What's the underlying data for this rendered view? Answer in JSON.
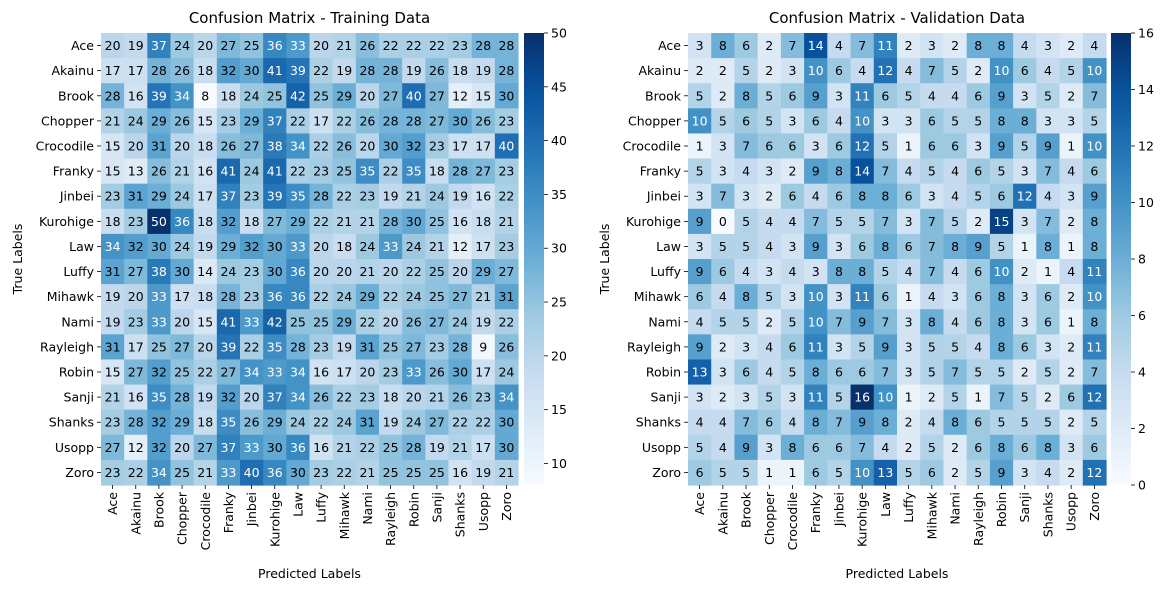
{
  "chart_data": [
    {
      "type": "heatmap",
      "title": "Confusion Matrix - Training Data",
      "xlabel": "Predicted Labels",
      "ylabel": "True Labels",
      "labels": [
        "Ace",
        "Akainu",
        "Brook",
        "Chopper",
        "Crocodile",
        "Franky",
        "Jinbei",
        "Kurohige",
        "Law",
        "Luffy",
        "Mihawk",
        "Nami",
        "Rayleigh",
        "Robin",
        "Sanji",
        "Shanks",
        "Usopp",
        "Zoro"
      ],
      "colorbar": {
        "min": 8,
        "max": 50,
        "ticks": [
          10,
          15,
          20,
          25,
          30,
          35,
          40,
          45,
          50
        ]
      },
      "colormap": [
        "#f7fbff",
        "#deebf7",
        "#c6dbef",
        "#9ecae1",
        "#6baed6",
        "#4292c6",
        "#2171b5",
        "#08519c",
        "#08306b"
      ],
      "matrix": [
        [
          20,
          19,
          37,
          24,
          20,
          27,
          25,
          36,
          33,
          20,
          21,
          26,
          22,
          22,
          22,
          23,
          28,
          28
        ],
        [
          17,
          17,
          28,
          26,
          18,
          32,
          30,
          41,
          39,
          22,
          19,
          28,
          28,
          19,
          26,
          18,
          19,
          28
        ],
        [
          28,
          16,
          39,
          34,
          8,
          18,
          24,
          25,
          42,
          25,
          29,
          20,
          27,
          40,
          27,
          12,
          15,
          30
        ],
        [
          21,
          24,
          29,
          26,
          15,
          23,
          29,
          37,
          22,
          17,
          22,
          26,
          28,
          28,
          27,
          30,
          26,
          23
        ],
        [
          15,
          20,
          31,
          20,
          18,
          26,
          27,
          38,
          34,
          22,
          26,
          20,
          30,
          32,
          23,
          17,
          17,
          40
        ],
        [
          15,
          13,
          26,
          21,
          16,
          41,
          24,
          41,
          22,
          23,
          25,
          35,
          22,
          35,
          18,
          28,
          27,
          23
        ],
        [
          23,
          31,
          29,
          24,
          17,
          37,
          23,
          39,
          35,
          28,
          22,
          23,
          19,
          21,
          24,
          19,
          16,
          22
        ],
        [
          18,
          23,
          50,
          36,
          18,
          32,
          18,
          27,
          29,
          22,
          21,
          21,
          28,
          30,
          25,
          16,
          18,
          21
        ],
        [
          34,
          32,
          30,
          24,
          19,
          29,
          32,
          30,
          33,
          20,
          18,
          24,
          33,
          24,
          21,
          12,
          17,
          23
        ],
        [
          31,
          27,
          38,
          30,
          14,
          24,
          23,
          30,
          36,
          20,
          20,
          21,
          20,
          22,
          25,
          20,
          29,
          27
        ],
        [
          19,
          20,
          33,
          17,
          18,
          28,
          23,
          36,
          36,
          22,
          24,
          29,
          22,
          24,
          25,
          27,
          21,
          31
        ],
        [
          19,
          23,
          33,
          20,
          15,
          41,
          33,
          42,
          25,
          25,
          29,
          22,
          20,
          26,
          27,
          24,
          19,
          22
        ],
        [
          31,
          17,
          25,
          27,
          20,
          39,
          22,
          35,
          28,
          23,
          19,
          31,
          25,
          27,
          23,
          28,
          9,
          26
        ],
        [
          15,
          27,
          32,
          25,
          22,
          27,
          34,
          33,
          34,
          16,
          17,
          20,
          23,
          33,
          26,
          30,
          17,
          24
        ],
        [
          21,
          16,
          35,
          28,
          19,
          32,
          20,
          37,
          34,
          26,
          22,
          23,
          18,
          20,
          21,
          26,
          23,
          34
        ],
        [
          23,
          28,
          32,
          29,
          18,
          35,
          26,
          29,
          24,
          22,
          24,
          31,
          19,
          24,
          27,
          22,
          22,
          30
        ],
        [
          27,
          12,
          32,
          20,
          27,
          37,
          33,
          30,
          36,
          16,
          21,
          22,
          25,
          28,
          19,
          21,
          17,
          30
        ],
        [
          23,
          22,
          34,
          25,
          21,
          33,
          40,
          36,
          30,
          23,
          22,
          21,
          25,
          25,
          25,
          16,
          19,
          21
        ]
      ]
    },
    {
      "type": "heatmap",
      "title": "Confusion Matrix - Validation Data",
      "xlabel": "Predicted Labels",
      "ylabel": "True Labels",
      "labels": [
        "Ace",
        "Akainu",
        "Brook",
        "Chopper",
        "Crocodile",
        "Franky",
        "Jinbei",
        "Kurohige",
        "Law",
        "Luffy",
        "Mihawk",
        "Nami",
        "Rayleigh",
        "Robin",
        "Sanji",
        "Shanks",
        "Usopp",
        "Zoro"
      ],
      "colorbar": {
        "min": 0,
        "max": 16,
        "ticks": [
          0,
          2,
          4,
          6,
          8,
          10,
          12,
          14,
          16
        ]
      },
      "colormap": [
        "#f7fbff",
        "#deebf7",
        "#c6dbef",
        "#9ecae1",
        "#6baed6",
        "#4292c6",
        "#2171b5",
        "#08519c",
        "#08306b"
      ],
      "matrix": [
        [
          3,
          8,
          6,
          2,
          7,
          14,
          4,
          7,
          11,
          2,
          3,
          2,
          8,
          8,
          4,
          3,
          2,
          4
        ],
        [
          2,
          2,
          5,
          2,
          3,
          10,
          6,
          4,
          12,
          4,
          7,
          5,
          2,
          10,
          6,
          4,
          5,
          10
        ],
        [
          5,
          2,
          8,
          5,
          6,
          9,
          3,
          11,
          6,
          5,
          4,
          4,
          6,
          9,
          3,
          5,
          2,
          7
        ],
        [
          10,
          5,
          6,
          5,
          3,
          6,
          4,
          10,
          3,
          3,
          6,
          5,
          5,
          8,
          8,
          3,
          3,
          5
        ],
        [
          1,
          3,
          7,
          6,
          6,
          3,
          6,
          12,
          5,
          1,
          6,
          6,
          3,
          9,
          5,
          9,
          1,
          10
        ],
        [
          5,
          3,
          4,
          3,
          2,
          9,
          8,
          14,
          7,
          4,
          5,
          4,
          6,
          5,
          3,
          7,
          4,
          6
        ],
        [
          3,
          7,
          3,
          2,
          6,
          4,
          6,
          8,
          8,
          6,
          3,
          4,
          5,
          6,
          12,
          4,
          3,
          9
        ],
        [
          9,
          0,
          5,
          4,
          4,
          7,
          5,
          5,
          7,
          3,
          7,
          5,
          2,
          15,
          3,
          7,
          2,
          8
        ],
        [
          3,
          5,
          5,
          4,
          3,
          9,
          3,
          6,
          8,
          6,
          7,
          8,
          9,
          5,
          1,
          8,
          1,
          8
        ],
        [
          9,
          6,
          4,
          3,
          4,
          3,
          8,
          8,
          5,
          4,
          7,
          4,
          6,
          10,
          2,
          1,
          4,
          11
        ],
        [
          6,
          4,
          8,
          5,
          3,
          10,
          3,
          11,
          6,
          1,
          4,
          3,
          6,
          8,
          3,
          6,
          2,
          10
        ],
        [
          4,
          5,
          5,
          2,
          5,
          10,
          7,
          9,
          7,
          3,
          8,
          4,
          6,
          8,
          3,
          6,
          1,
          8
        ],
        [
          9,
          2,
          3,
          4,
          6,
          11,
          3,
          5,
          9,
          3,
          5,
          5,
          4,
          8,
          6,
          3,
          2,
          11
        ],
        [
          13,
          3,
          6,
          4,
          5,
          8,
          6,
          6,
          7,
          3,
          5,
          7,
          5,
          5,
          2,
          5,
          2,
          7
        ],
        [
          3,
          2,
          3,
          5,
          3,
          11,
          5,
          16,
          10,
          1,
          2,
          5,
          1,
          7,
          5,
          2,
          6,
          12
        ],
        [
          4,
          4,
          7,
          6,
          4,
          8,
          7,
          9,
          8,
          2,
          4,
          8,
          6,
          5,
          5,
          5,
          2,
          5
        ],
        [
          5,
          4,
          9,
          3,
          8,
          6,
          6,
          7,
          4,
          2,
          5,
          2,
          6,
          8,
          6,
          8,
          3,
          6
        ],
        [
          6,
          5,
          5,
          1,
          1,
          6,
          5,
          10,
          13,
          5,
          6,
          2,
          5,
          9,
          3,
          4,
          2,
          12
        ]
      ]
    }
  ]
}
